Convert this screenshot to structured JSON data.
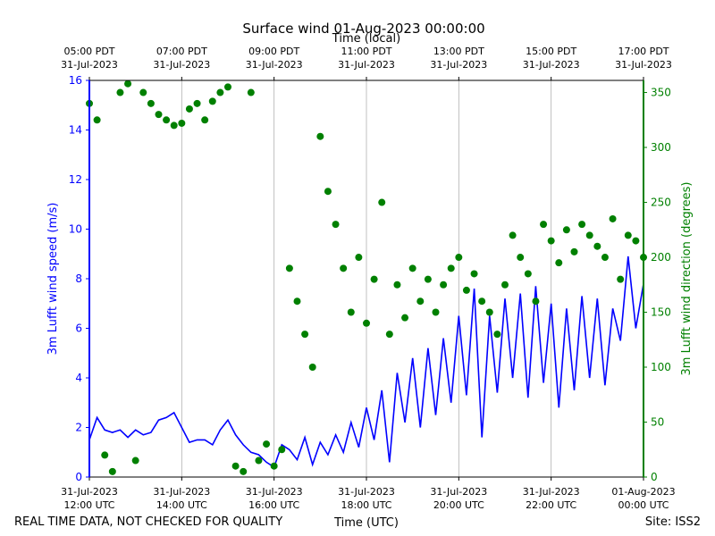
{
  "chart_data": {
    "type": "line",
    "title": "Surface wind 01-Aug-2023 00:00:00",
    "xlabel": "Time (UTC)",
    "x2label": "Time (local)",
    "ylabel": "3m Lufft wind speed (m/s)",
    "y2label": "3m Lufft wind direction (degrees)",
    "footer_left": "REAL TIME DATA, NOT CHECKED FOR QUALITY",
    "footer_right": "Site: ISS2",
    "grid": "x",
    "xlim": [
      "2023-07-31 12:00",
      "2023-08-01 00:00"
    ],
    "xticks": [
      {
        "value": "2023-07-31 12:00",
        "label": [
          "31-Jul-2023",
          "12:00 UTC"
        ]
      },
      {
        "value": "2023-07-31 14:00",
        "label": [
          "31-Jul-2023",
          "14:00 UTC"
        ]
      },
      {
        "value": "2023-07-31 16:00",
        "label": [
          "31-Jul-2023",
          "16:00 UTC"
        ]
      },
      {
        "value": "2023-07-31 18:00",
        "label": [
          "31-Jul-2023",
          "18:00 UTC"
        ]
      },
      {
        "value": "2023-07-31 20:00",
        "label": [
          "31-Jul-2023",
          "20:00 UTC"
        ]
      },
      {
        "value": "2023-07-31 22:00",
        "label": [
          "31-Jul-2023",
          "22:00 UTC"
        ]
      },
      {
        "value": "2023-08-01 00:00",
        "label": [
          "01-Aug-2023",
          "00:00 UTC"
        ]
      }
    ],
    "x2ticks": [
      {
        "value": "2023-07-31 12:00",
        "label": [
          "05:00 PDT",
          "31-Jul-2023"
        ]
      },
      {
        "value": "2023-07-31 14:00",
        "label": [
          "07:00 PDT",
          "31-Jul-2023"
        ]
      },
      {
        "value": "2023-07-31 16:00",
        "label": [
          "09:00 PDT",
          "31-Jul-2023"
        ]
      },
      {
        "value": "2023-07-31 18:00",
        "label": [
          "11:00 PDT",
          "31-Jul-2023"
        ]
      },
      {
        "value": "2023-07-31 20:00",
        "label": [
          "13:00 PDT",
          "31-Jul-2023"
        ]
      },
      {
        "value": "2023-07-31 22:00",
        "label": [
          "15:00 PDT",
          "31-Jul-2023"
        ]
      },
      {
        "value": "2023-08-01 00:00",
        "label": [
          "17:00 PDT",
          "31-Jul-2023"
        ]
      }
    ],
    "ylim": [
      0,
      16
    ],
    "yticks": [
      0,
      2,
      4,
      6,
      8,
      10,
      12,
      14,
      16
    ],
    "ycolor": "#0000ff",
    "y2lim": [
      0,
      361
    ],
    "y2ticks": [
      0,
      50,
      100,
      150,
      200,
      250,
      300,
      350
    ],
    "y2color": "#008000",
    "x": [
      "2023-07-31 12:00",
      "2023-07-31 12:10",
      "2023-07-31 12:20",
      "2023-07-31 12:30",
      "2023-07-31 12:40",
      "2023-07-31 12:50",
      "2023-07-31 13:00",
      "2023-07-31 13:10",
      "2023-07-31 13:20",
      "2023-07-31 13:30",
      "2023-07-31 13:40",
      "2023-07-31 13:50",
      "2023-07-31 14:00",
      "2023-07-31 14:10",
      "2023-07-31 14:20",
      "2023-07-31 14:30",
      "2023-07-31 14:40",
      "2023-07-31 14:50",
      "2023-07-31 15:00",
      "2023-07-31 15:10",
      "2023-07-31 15:20",
      "2023-07-31 15:30",
      "2023-07-31 15:40",
      "2023-07-31 15:50",
      "2023-07-31 16:00",
      "2023-07-31 16:10",
      "2023-07-31 16:20",
      "2023-07-31 16:30",
      "2023-07-31 16:40",
      "2023-07-31 16:50",
      "2023-07-31 17:00",
      "2023-07-31 17:10",
      "2023-07-31 17:20",
      "2023-07-31 17:30",
      "2023-07-31 17:40",
      "2023-07-31 17:50",
      "2023-07-31 18:00",
      "2023-07-31 18:10",
      "2023-07-31 18:20",
      "2023-07-31 18:30",
      "2023-07-31 18:40",
      "2023-07-31 18:50",
      "2023-07-31 19:00",
      "2023-07-31 19:10",
      "2023-07-31 19:20",
      "2023-07-31 19:30",
      "2023-07-31 19:40",
      "2023-07-31 19:50",
      "2023-07-31 20:00",
      "2023-07-31 20:10",
      "2023-07-31 20:20",
      "2023-07-31 20:30",
      "2023-07-31 20:40",
      "2023-07-31 20:50",
      "2023-07-31 21:00",
      "2023-07-31 21:10",
      "2023-07-31 21:20",
      "2023-07-31 21:30",
      "2023-07-31 21:40",
      "2023-07-31 21:50",
      "2023-07-31 22:00",
      "2023-07-31 22:10",
      "2023-07-31 22:20",
      "2023-07-31 22:30",
      "2023-07-31 22:40",
      "2023-07-31 22:50",
      "2023-07-31 23:00",
      "2023-07-31 23:10",
      "2023-07-31 23:20",
      "2023-07-31 23:30",
      "2023-07-31 23:40",
      "2023-07-31 23:50",
      "2023-08-01 00:00"
    ],
    "series": [
      {
        "name": "3m Lufft wind speed",
        "color": "#0000ff",
        "type": "line",
        "axis": "y",
        "values": [
          1.5,
          2.4,
          1.9,
          1.8,
          1.9,
          1.6,
          1.9,
          1.7,
          1.8,
          2.3,
          2.4,
          2.6,
          2.0,
          1.4,
          1.5,
          1.5,
          1.3,
          1.9,
          2.3,
          1.7,
          1.3,
          1.0,
          0.9,
          0.6,
          0.4,
          1.3,
          1.1,
          0.7,
          1.6,
          0.5,
          1.4,
          0.9,
          1.7,
          1.0,
          2.2,
          1.2,
          2.8,
          1.5,
          3.5,
          0.6,
          4.2,
          2.2,
          4.8,
          2.0,
          5.2,
          2.5,
          5.6,
          3.0,
          6.5,
          3.3,
          7.6,
          1.6,
          6.5,
          3.4,
          7.2,
          4.0,
          7.4,
          3.2,
          7.7,
          3.8,
          7.0,
          2.8,
          6.8,
          3.5,
          7.3,
          4.0,
          7.2,
          3.7,
          6.8,
          5.5,
          8.9,
          6.0,
          7.8
        ]
      },
      {
        "name": "3m Lufft wind direction",
        "color": "#008000",
        "type": "scatter",
        "axis": "y2",
        "values": [
          340,
          325,
          20,
          5,
          350,
          358,
          15,
          350,
          340,
          330,
          325,
          320,
          322,
          335,
          340,
          325,
          342,
          350,
          355,
          10,
          5,
          350,
          15,
          30,
          10,
          25,
          190,
          160,
          130,
          100,
          310,
          260,
          230,
          190,
          150,
          200,
          140,
          180,
          250,
          130,
          175,
          145,
          190,
          160,
          180,
          150,
          175,
          190,
          200,
          170,
          185,
          160,
          150,
          130,
          175,
          220,
          200,
          185,
          160,
          230,
          215,
          195,
          225,
          205,
          230,
          220,
          210,
          200,
          235,
          180,
          220,
          215,
          200
        ]
      }
    ]
  }
}
